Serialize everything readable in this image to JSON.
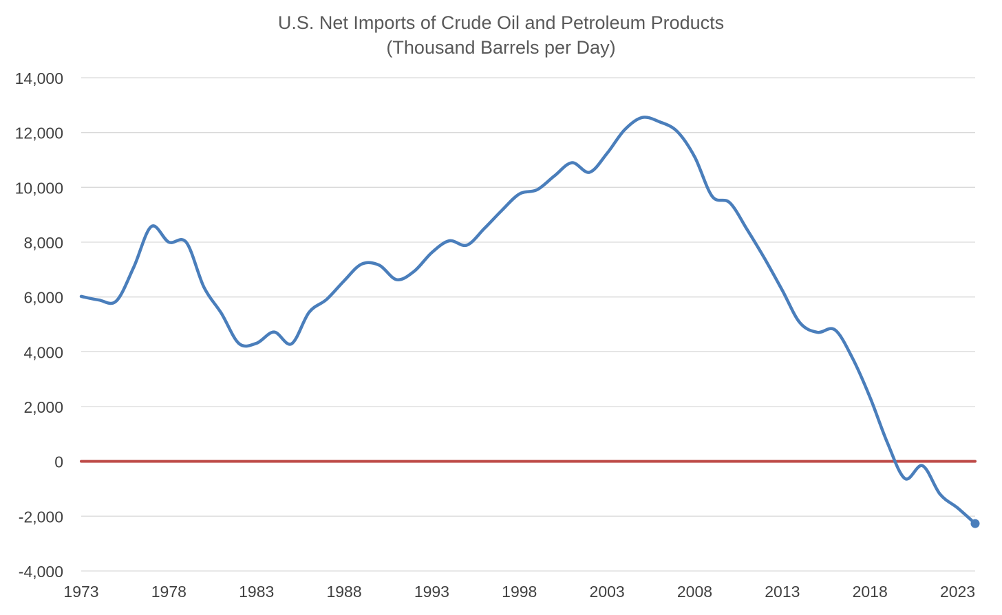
{
  "chart_data": {
    "type": "line",
    "title": "U.S. Net Imports of Crude Oil and Petroleum Products",
    "subtitle": "(Thousand Barrels per Day)",
    "xlabel": "",
    "ylabel": "",
    "xlim": [
      1973,
      2024
    ],
    "ylim": [
      -4000,
      14000
    ],
    "x_ticks": [
      1973,
      1978,
      1983,
      1988,
      1993,
      1998,
      2003,
      2008,
      2013,
      2018,
      2023
    ],
    "x_tick_labels": [
      "1973",
      "1978",
      "1983",
      "1988",
      "1993",
      "1998",
      "2003",
      "2008",
      "2013",
      "2018",
      "2023"
    ],
    "y_ticks": [
      -4000,
      -2000,
      0,
      2000,
      4000,
      6000,
      8000,
      10000,
      12000,
      14000
    ],
    "y_tick_labels": [
      "-4,000",
      "-2,000",
      "0",
      "2,000",
      "4,000",
      "6,000",
      "8,000",
      "10,000",
      "12,000",
      "14,000"
    ],
    "grid": true,
    "series": [
      {
        "color": "#4a7ebb",
        "smooth": true,
        "end_marker": true,
        "x": [
          1973,
          1974,
          1975,
          1976,
          1977,
          1978,
          1979,
          1980,
          1981,
          1982,
          1983,
          1984,
          1985,
          1986,
          1987,
          1988,
          1989,
          1990,
          1991,
          1992,
          1993,
          1994,
          1995,
          1996,
          1997,
          1998,
          1999,
          2000,
          2001,
          2002,
          2003,
          2004,
          2005,
          2006,
          2007,
          2008,
          2009,
          2010,
          2011,
          2012,
          2013,
          2014,
          2015,
          2016,
          2017,
          2018,
          2019,
          2020,
          2021,
          2022,
          2023,
          2024
        ],
        "values": [
          6020,
          5890,
          5850,
          7090,
          8570,
          8000,
          7990,
          6360,
          5400,
          4300,
          4310,
          4720,
          4290,
          5440,
          5910,
          6590,
          7200,
          7160,
          6630,
          6940,
          7620,
          8050,
          7890,
          8500,
          9160,
          9760,
          9910,
          10420,
          10900,
          10550,
          11240,
          12100,
          12550,
          12390,
          12040,
          11110,
          9670,
          9440,
          8450,
          7390,
          6240,
          5060,
          4710,
          4800,
          3770,
          2340,
          670,
          -630,
          -160,
          -1200,
          -1700,
          -2270
        ]
      },
      {
        "color": "#be4b48",
        "smooth": false,
        "end_marker": false,
        "x": [
          1973,
          2024
        ],
        "values": [
          0,
          0
        ]
      }
    ]
  }
}
